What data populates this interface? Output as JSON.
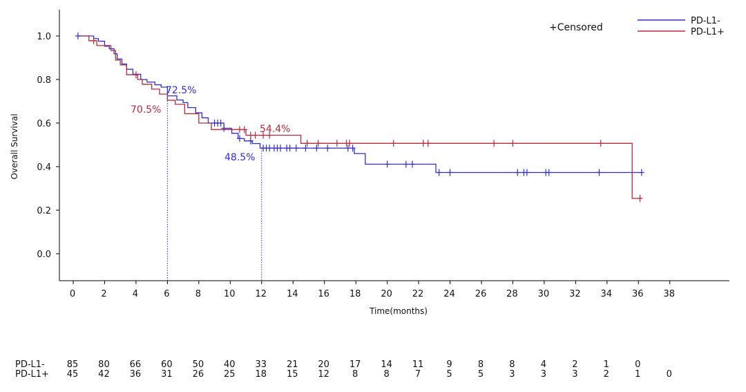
{
  "chart_data": {
    "type": "line",
    "title": "",
    "xlabel": "Time(months)",
    "ylabel": "Overall Survival",
    "xlim": [
      -1.5,
      42
    ],
    "ylim": [
      -0.13,
      1.12
    ],
    "x_ticks": [
      0,
      2,
      4,
      6,
      8,
      10,
      12,
      14,
      16,
      18,
      20,
      22,
      24,
      26,
      28,
      30,
      32,
      34,
      36,
      38
    ],
    "y_ticks": [
      0.0,
      0.2,
      0.4,
      0.6,
      0.8,
      1.0
    ],
    "grid": false,
    "legend_placement": "top-right",
    "censor_label": "+Censored",
    "series": [
      {
        "name": "PD-L1-",
        "color": "#2d2dd6",
        "steps": [
          [
            0.3,
            1.0
          ],
          [
            1.3,
            0.988
          ],
          [
            1.6,
            0.976
          ],
          [
            2.0,
            0.953
          ],
          [
            2.3,
            0.941
          ],
          [
            2.6,
            0.918
          ],
          [
            2.8,
            0.894
          ],
          [
            3.1,
            0.871
          ],
          [
            3.4,
            0.847
          ],
          [
            3.8,
            0.824
          ],
          [
            4.3,
            0.8
          ],
          [
            4.7,
            0.788
          ],
          [
            5.2,
            0.776
          ],
          [
            5.6,
            0.765
          ],
          [
            6.0,
            0.725
          ],
          [
            6.3,
            0.725
          ],
          [
            6.6,
            0.706
          ],
          [
            7.0,
            0.694
          ],
          [
            7.3,
            0.671
          ],
          [
            7.8,
            0.647
          ],
          [
            8.2,
            0.624
          ],
          [
            8.6,
            0.6
          ],
          [
            9.6,
            0.576
          ],
          [
            10.1,
            0.553
          ],
          [
            10.5,
            0.529
          ],
          [
            10.9,
            0.518
          ],
          [
            11.4,
            0.506
          ],
          [
            11.9,
            0.485
          ],
          [
            17.9,
            0.46
          ],
          [
            18.6,
            0.411
          ],
          [
            23.1,
            0.373
          ],
          [
            36.2,
            0.373
          ]
        ],
        "censored": [
          0.3,
          9.0,
          9.2,
          9.4,
          9.6,
          10.6,
          11.3,
          12.1,
          12.3,
          12.5,
          12.8,
          13.0,
          13.2,
          13.6,
          13.8,
          14.2,
          14.8,
          15.5,
          16.2,
          17.5,
          17.8,
          20.0,
          21.2,
          21.6,
          23.3,
          24.0,
          28.3,
          28.7,
          28.9,
          30.1,
          30.3,
          33.5,
          36.2
        ],
        "annotations": [
          {
            "x": 6,
            "y": 0.725,
            "label": "72.5%"
          },
          {
            "x": 12,
            "y": 0.485,
            "label": "48.5%"
          }
        ]
      },
      {
        "name": "PD-L1+",
        "color": "#b8283a",
        "steps": [
          [
            0.3,
            1.0
          ],
          [
            1.0,
            0.978
          ],
          [
            1.5,
            0.956
          ],
          [
            2.4,
            0.933
          ],
          [
            2.7,
            0.889
          ],
          [
            3.0,
            0.867
          ],
          [
            3.4,
            0.822
          ],
          [
            4.1,
            0.8
          ],
          [
            4.4,
            0.778
          ],
          [
            5.0,
            0.756
          ],
          [
            5.5,
            0.733
          ],
          [
            6.0,
            0.705
          ],
          [
            6.5,
            0.686
          ],
          [
            7.1,
            0.643
          ],
          [
            8.0,
            0.6
          ],
          [
            8.8,
            0.57
          ],
          [
            10.3,
            0.57
          ],
          [
            11.0,
            0.544
          ],
          [
            14.5,
            0.507
          ],
          [
            35.6,
            0.507
          ],
          [
            35.6,
            0.254
          ],
          [
            36.2,
            0.254
          ]
        ],
        "censored": [
          1.3,
          4.0,
          10.6,
          10.9,
          11.3,
          11.6,
          12.1,
          12.5,
          14.9,
          15.6,
          16.8,
          17.4,
          17.6,
          20.4,
          22.3,
          22.6,
          26.8,
          28.0,
          33.6,
          36.1
        ],
        "annotations": [
          {
            "x": 6,
            "y": 0.705,
            "label": "70.5%"
          },
          {
            "x": 12,
            "y": 0.544,
            "label": "54.4%"
          }
        ]
      }
    ],
    "risk_table": {
      "times": [
        0,
        2,
        4,
        6,
        8,
        10,
        12,
        14,
        16,
        18,
        20,
        22,
        24,
        26,
        28,
        30,
        32,
        34,
        36,
        38
      ],
      "rows": [
        {
          "name": "PD-L1-",
          "values": [
            "85",
            "80",
            "66",
            "60",
            "50",
            "40",
            "33",
            "21",
            "20",
            "17",
            "14",
            "11",
            "9",
            "8",
            "8",
            "4",
            "2",
            "1",
            "0",
            ""
          ]
        },
        {
          "name": "PD-L1+",
          "values": [
            "45",
            "42",
            "36",
            "31",
            "26",
            "25",
            "18",
            "15",
            "12",
            "8",
            "8",
            "7",
            "5",
            "5",
            "3",
            "3",
            "3",
            "2",
            "1",
            "0"
          ]
        }
      ]
    }
  }
}
